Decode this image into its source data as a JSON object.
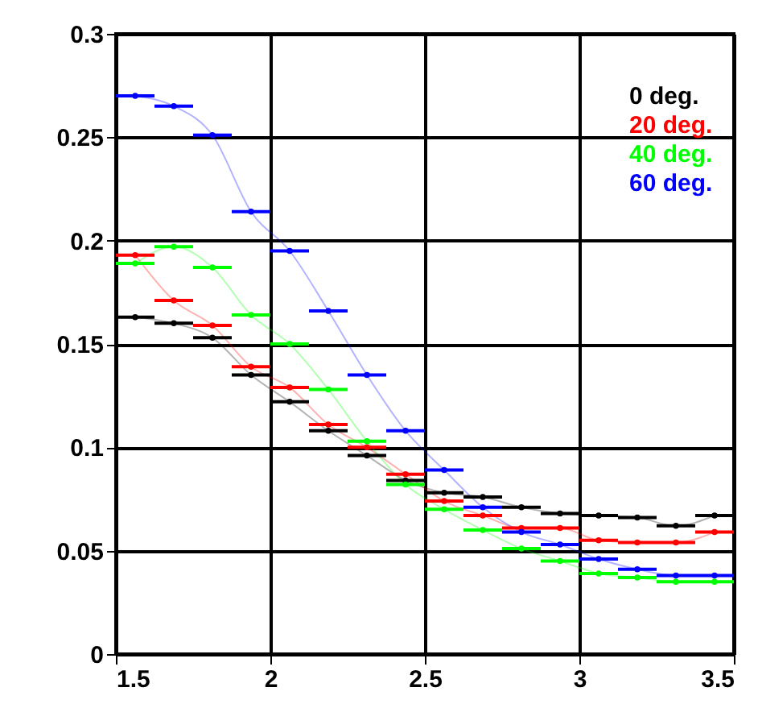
{
  "chart_data": {
    "type": "line",
    "marker": "circle",
    "legend": "top right",
    "grid": true,
    "x": [
      1.5625,
      1.6875,
      1.8125,
      1.9375,
      2.0625,
      2.1875,
      2.3125,
      2.4375,
      2.5625,
      2.6875,
      2.8125,
      2.9375,
      3.0625,
      3.1875,
      3.3125,
      3.4375
    ],
    "xlim": [
      1.5,
      3.5
    ],
    "xticks": [
      1.5,
      2,
      2.5,
      3,
      3.5
    ],
    "ylim": [
      0,
      0.3
    ],
    "yticks": [
      0,
      0.05,
      0.1,
      0.15,
      0.2,
      0.25,
      0.3
    ],
    "series": [
      {
        "name": "0 deg.",
        "color": "#000000",
        "values": [
          0.163,
          0.16,
          0.153,
          0.135,
          0.122,
          0.108,
          0.096,
          0.084,
          0.078,
          0.076,
          0.071,
          0.068,
          0.067,
          0.066,
          0.062,
          0.067
        ],
        "xerrors": [
          0.0625,
          0.0625,
          0.0625,
          0.0625,
          0.0625,
          0.0625,
          0.0625,
          0.0625,
          0.0625,
          0.0625,
          0.0625,
          0.0625,
          0.0625,
          0.0625,
          0.0625,
          0.0625
        ]
      },
      {
        "name": "20 deg.",
        "color": "#ff0000",
        "values": [
          0.193,
          0.171,
          0.159,
          0.139,
          0.129,
          0.111,
          0.1,
          0.087,
          0.074,
          0.067,
          0.061,
          0.061,
          0.055,
          0.054,
          0.054,
          0.059
        ],
        "xerrors": [
          0.0625,
          0.0625,
          0.0625,
          0.0625,
          0.0625,
          0.0625,
          0.0625,
          0.0625,
          0.0625,
          0.0625,
          0.0625,
          0.0625,
          0.0625,
          0.0625,
          0.0625,
          0.0625
        ]
      },
      {
        "name": "40 deg.",
        "color": "#00ff00",
        "values": [
          0.189,
          0.197,
          0.187,
          0.164,
          0.15,
          0.128,
          0.103,
          0.082,
          0.07,
          0.06,
          0.051,
          0.045,
          0.039,
          0.037,
          0.035,
          0.035
        ],
        "xerrors": [
          0.0625,
          0.0625,
          0.0625,
          0.0625,
          0.0625,
          0.0625,
          0.0625,
          0.0625,
          0.0625,
          0.0625,
          0.0625,
          0.0625,
          0.0625,
          0.0625,
          0.0625,
          0.0625
        ]
      },
      {
        "name": "60 deg.",
        "color": "#0000ff",
        "values": [
          0.27,
          0.265,
          0.251,
          0.214,
          0.195,
          0.166,
          0.135,
          0.108,
          0.089,
          0.071,
          0.059,
          0.053,
          0.046,
          0.041,
          0.038,
          0.038
        ],
        "xerrors": [
          0.0625,
          0.0625,
          0.0625,
          0.0625,
          0.0625,
          0.0625,
          0.0625,
          0.0625,
          0.0625,
          0.0625,
          0.0625,
          0.0625,
          0.0625,
          0.0625,
          0.0625,
          0.0625
        ]
      }
    ]
  }
}
